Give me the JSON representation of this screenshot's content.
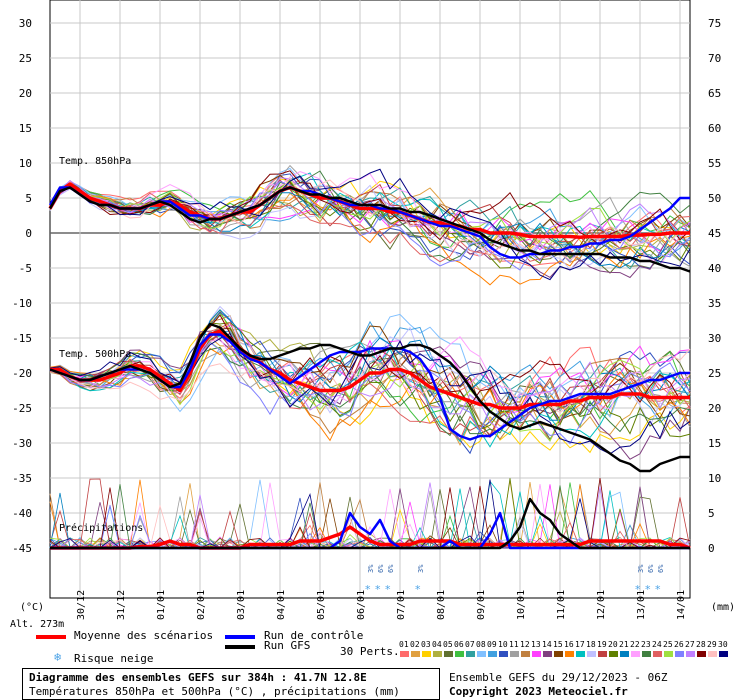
{
  "chart_data": {
    "type": "line",
    "left_axis_ticks": [
      "30",
      "25",
      "20",
      "15",
      "10",
      "5",
      "0",
      "-5",
      "-10",
      "-15",
      "-20",
      "-25",
      "-30",
      "-35",
      "-40",
      "-45"
    ],
    "right_axis_ticks": [
      "75",
      "70",
      "65",
      "60",
      "55",
      "50",
      "45",
      "40",
      "35",
      "30",
      "25",
      "20",
      "15",
      "10",
      "5",
      "0"
    ],
    "left_axis_values": [
      30,
      25,
      20,
      15,
      10,
      5,
      0,
      -5,
      -10,
      -15,
      -20,
      -25,
      -30,
      -35,
      -40,
      -45
    ],
    "right_axis_values": [
      75,
      70,
      65,
      60,
      55,
      50,
      45,
      40,
      35,
      30,
      25,
      20,
      15,
      10,
      5,
      0
    ],
    "left_unit": "(°C)",
    "right_unit": "(mm)",
    "altitude": "Alt. 273m",
    "x_labels": [
      "30/12",
      "31/12",
      "01/01",
      "02/01",
      "03/01",
      "04/01",
      "05/01",
      "06/01",
      "07/01",
      "08/01",
      "09/01",
      "10/01",
      "11/01",
      "12/01",
      "13/01",
      "14/01"
    ],
    "section_labels": {
      "t850": "Temp. 850hPa",
      "t500": "Temp. 500hPa",
      "precip": "Précipitations"
    },
    "x": [
      0,
      6,
      12,
      18,
      24,
      30,
      36,
      42,
      48,
      54,
      60,
      66,
      72,
      78,
      84,
      90,
      96,
      102,
      108,
      114,
      120,
      126,
      132,
      138,
      144,
      150,
      156,
      162,
      168,
      174,
      180,
      186,
      192,
      198,
      204,
      210,
      216,
      222,
      228,
      234,
      240,
      246,
      252,
      258,
      264,
      270,
      276,
      282,
      288,
      294,
      300,
      306,
      312,
      318,
      324,
      330,
      336,
      342,
      348,
      354,
      360,
      366,
      372,
      378,
      384
    ],
    "x_unit": "h",
    "series": [
      {
        "name": "Moyenne des scénarios",
        "color": "#ff0000",
        "group": "t850",
        "values": [
          3.5,
          6.0,
          7.0,
          6.0,
          5.0,
          4.5,
          4.0,
          3.5,
          3.5,
          3.5,
          4.0,
          4.0,
          4.5,
          4.0,
          3.0,
          2.5,
          2.0,
          2.0,
          2.5,
          3.0,
          3.0,
          4.0,
          5.0,
          6.0,
          6.5,
          6.0,
          5.5,
          5.0,
          5.0,
          4.5,
          4.0,
          3.5,
          3.5,
          3.5,
          3.0,
          3.0,
          2.5,
          2.0,
          1.5,
          1.5,
          1.0,
          1.0,
          0.5,
          0.5,
          0.0,
          0.0,
          0.0,
          -0.2,
          -0.5,
          -0.5,
          -0.5,
          -0.5,
          -0.5,
          -0.6,
          -0.5,
          -0.5,
          -0.5,
          -0.5,
          -0.3,
          -0.3,
          -0.2,
          -0.2,
          0.0,
          0.0,
          0.0
        ]
      },
      {
        "name": "Moyenne des scénarios",
        "color": "#ff0000",
        "group": "t500",
        "values": [
          -19.5,
          -19.5,
          -20.5,
          -21.0,
          -21.0,
          -21.0,
          -20.5,
          -20.0,
          -19.0,
          -19.0,
          -19.5,
          -20.5,
          -21.5,
          -22.5,
          -20.0,
          -16.5,
          -14.5,
          -14.0,
          -15.0,
          -16.5,
          -17.5,
          -18.5,
          -19.5,
          -20.0,
          -21.0,
          -21.5,
          -22.0,
          -22.5,
          -22.5,
          -22.5,
          -22.0,
          -21.0,
          -20.0,
          -20.0,
          -19.5,
          -19.5,
          -20.0,
          -21.0,
          -22.0,
          -22.5,
          -23.0,
          -23.5,
          -24.0,
          -24.5,
          -24.5,
          -25.0,
          -25.0,
          -25.0,
          -24.5,
          -24.5,
          -24.5,
          -24.5,
          -24.0,
          -24.0,
          -23.5,
          -23.5,
          -23.5,
          -23.0,
          -23.0,
          -23.0,
          -23.5,
          -23.5,
          -23.5,
          -23.5,
          -23.5
        ]
      },
      {
        "name": "Moyenne des scénarios",
        "color": "#ff0000",
        "group": "precip",
        "values": [
          0,
          0,
          0,
          0,
          0,
          0,
          0,
          0,
          0,
          0.2,
          0.2,
          0.5,
          1,
          0.5,
          0.5,
          0,
          0,
          0,
          0,
          0,
          0.5,
          0.5,
          0.5,
          0.5,
          0.5,
          1,
          1,
          1,
          1.5,
          2,
          3,
          2,
          1,
          0.5,
          0.5,
          0.5,
          0.5,
          1,
          1,
          1,
          1,
          0.5,
          0.5,
          0.5,
          0.5,
          0.5,
          0.5,
          0.5,
          0.5,
          0.5,
          0.5,
          0.5,
          0.5,
          0.5,
          1,
          1,
          1,
          1,
          1,
          1,
          1,
          1,
          0.5,
          0.5,
          0
        ]
      },
      {
        "name": "Run de contrôle",
        "color": "#0000ff",
        "group": "t850",
        "values": [
          4.0,
          6.5,
          6.5,
          5.5,
          4.5,
          4.0,
          4.0,
          3.5,
          3.5,
          3.5,
          4.0,
          4.5,
          4.5,
          3.5,
          2.5,
          2.5,
          2.0,
          2.0,
          2.5,
          3.0,
          3.5,
          4.0,
          5.0,
          6.0,
          6.5,
          6.0,
          6.0,
          5.5,
          5.0,
          4.5,
          4.0,
          4.0,
          4.0,
          3.5,
          3.5,
          3.0,
          2.5,
          2.0,
          1.5,
          1.0,
          1.0,
          0.5,
          0.0,
          -0.5,
          -2.0,
          -3.0,
          -3.5,
          -3.5,
          -3.0,
          -3.0,
          -2.5,
          -2.5,
          -2.0,
          -2.0,
          -1.5,
          -1.5,
          -1.0,
          -1.0,
          -0.5,
          0.5,
          1.5,
          2.5,
          3.5,
          5.0,
          5.0
        ]
      },
      {
        "name": "Run de contrôle",
        "color": "#0000ff",
        "group": "t500",
        "values": [
          -19.5,
          -20.0,
          -20.5,
          -21.0,
          -21.0,
          -20.5,
          -20.0,
          -19.5,
          -19.5,
          -19.5,
          -20.0,
          -21.0,
          -22.0,
          -22.0,
          -19.5,
          -16.0,
          -14.5,
          -14.5,
          -15.5,
          -17.0,
          -18.0,
          -18.5,
          -19.5,
          -20.5,
          -21.5,
          -20.5,
          -19.5,
          -18.5,
          -17.5,
          -17.0,
          -17.0,
          -17.0,
          -16.5,
          -16.5,
          -16.5,
          -16.5,
          -17.0,
          -18.0,
          -20.0,
          -23.5,
          -28.0,
          -29.0,
          -29.5,
          -29.0,
          -29.0,
          -28.0,
          -27.0,
          -26.0,
          -25.0,
          -24.5,
          -24.0,
          -24.0,
          -23.5,
          -23.0,
          -23.0,
          -23.0,
          -23.0,
          -22.5,
          -22.0,
          -21.5,
          -21.0,
          -21.0,
          -20.5,
          -20.0,
          -20.0
        ]
      },
      {
        "name": "Run de contrôle",
        "color": "#0000ff",
        "group": "precip",
        "values": [
          0,
          0,
          0,
          0,
          0,
          0,
          0,
          0,
          0,
          0,
          0,
          0,
          0,
          0,
          0,
          0,
          0,
          0,
          0,
          0,
          0,
          0,
          0,
          0,
          0,
          0,
          0,
          0,
          0,
          1,
          5,
          3,
          2,
          4,
          1,
          0,
          0,
          0,
          0,
          0,
          1,
          0,
          0,
          0,
          2,
          5,
          0,
          0,
          0,
          0,
          0,
          0,
          0,
          0,
          0,
          0,
          0,
          0,
          0,
          0,
          0,
          0,
          0,
          0,
          0
        ]
      },
      {
        "name": "Run GFS",
        "color": "#000000",
        "group": "t850",
        "values": [
          3.5,
          6.0,
          6.5,
          5.5,
          4.5,
          4.0,
          4.0,
          3.5,
          3.5,
          3.5,
          4.0,
          4.5,
          4.0,
          3.0,
          2.0,
          1.5,
          2.0,
          2.0,
          2.5,
          3.0,
          3.5,
          4.0,
          5.0,
          6.0,
          6.5,
          6.0,
          5.5,
          5.5,
          5.0,
          5.0,
          4.5,
          4.0,
          4.0,
          4.0,
          3.5,
          3.5,
          3.0,
          3.0,
          2.5,
          2.0,
          1.5,
          1.0,
          0.5,
          0.0,
          -1.0,
          -1.5,
          -2.0,
          -2.5,
          -2.5,
          -3.0,
          -3.0,
          -3.0,
          -3.0,
          -3.0,
          -3.0,
          -3.0,
          -3.5,
          -3.5,
          -3.5,
          -4.0,
          -4.0,
          -4.5,
          -5.0,
          -5.0,
          -5.5
        ]
      },
      {
        "name": "Run GFS",
        "color": "#000000",
        "group": "t500",
        "values": [
          -19.5,
          -20.0,
          -20.5,
          -21.0,
          -21.0,
          -20.5,
          -20.0,
          -19.5,
          -19.0,
          -19.5,
          -20.0,
          -21.0,
          -22.0,
          -21.5,
          -18.5,
          -15.0,
          -13.0,
          -13.5,
          -15.0,
          -16.5,
          -17.5,
          -18.0,
          -18.0,
          -17.5,
          -17.0,
          -16.5,
          -16.5,
          -16.0,
          -16.0,
          -16.5,
          -17.0,
          -17.5,
          -17.5,
          -17.0,
          -16.5,
          -16.5,
          -16.0,
          -16.0,
          -16.5,
          -17.5,
          -18.5,
          -20.0,
          -22.0,
          -24.0,
          -25.5,
          -26.5,
          -27.5,
          -28.0,
          -27.5,
          -27.0,
          -27.5,
          -28.0,
          -28.5,
          -29.0,
          -29.5,
          -30.5,
          -31.5,
          -32.5,
          -33.0,
          -34.0,
          -34.0,
          -33.0,
          -32.5,
          -32.0,
          -32.0
        ]
      },
      {
        "name": "Run GFS",
        "color": "#000000",
        "group": "precip",
        "values": [
          0,
          0,
          0,
          0,
          0,
          0,
          0,
          0,
          0,
          0,
          0,
          0,
          0,
          0,
          0,
          0,
          0,
          0,
          0,
          0,
          0,
          0,
          0,
          0,
          0,
          0,
          0,
          0,
          0,
          0,
          0,
          0,
          0,
          0,
          0,
          0,
          0,
          0,
          0,
          0,
          0,
          0,
          0,
          0,
          0,
          0,
          1,
          3,
          7,
          5,
          4,
          2,
          1,
          0,
          0,
          0,
          0,
          0,
          0,
          0,
          0,
          0,
          0,
          0,
          0
        ]
      }
    ],
    "perturbation_colors": [
      "#ff6b6b",
      "#e0a040",
      "#ffd000",
      "#b0b040",
      "#607030",
      "#40c040",
      "#30a0a0",
      "#80c0ff",
      "#40a0e0",
      "#3050c0",
      "#a0a0a0",
      "#c08040",
      "#ff40ff",
      "#804080",
      "#804000",
      "#ff8000",
      "#00c0c0",
      "#c0c0ff",
      "#c04040",
      "#608000",
      "#0080c0",
      "#ffa0ff",
      "#408040",
      "#e06060",
      "#a0e040",
      "#8080ff",
      "#c080ff",
      "#800000",
      "#ffc0c0",
      "#000080"
    ],
    "perturbation_labels": [
      "01",
      "02",
      "03",
      "04",
      "05",
      "06",
      "07",
      "08",
      "09",
      "10",
      "11",
      "12",
      "13",
      "14",
      "15",
      "16",
      "17",
      "18",
      "19",
      "20",
      "21",
      "22",
      "23",
      "24",
      "25",
      "26",
      "27",
      "28",
      "29",
      "30"
    ],
    "snow_risk_x_hours": [
      192,
      198,
      204,
      222,
      354,
      360,
      366
    ],
    "snow_risk_markers": [
      {
        "lines": [
          "3%",
          "*"
        ]
      },
      {
        "lines": [
          "6%",
          "*"
        ]
      },
      {
        "lines": [
          "6%",
          "*"
        ]
      },
      {
        "lines": [
          "3%",
          "*"
        ]
      },
      {
        "lines": [
          "3%",
          "*"
        ]
      },
      {
        "lines": [
          "6%",
          "*"
        ]
      },
      {
        "lines": [
          "6%",
          "*"
        ]
      }
    ]
  },
  "legend": {
    "mean": "Moyenne des scénarios",
    "control": "Run de contrôle",
    "gfs": "Run GFS",
    "pert_label": "30 Perts.",
    "snow_risk": "Risque neige"
  },
  "footer": {
    "title": "Diagramme des ensembles GEFS sur 384h : 41.7N 12.8E",
    "subtitle": "Températures 850hPa et 500hPa (°C) , précipitations (mm)",
    "run": "Ensemble GEFS du 29/12/2023 - 06Z",
    "copyright": "Copyright 2023 Meteociel.fr"
  }
}
